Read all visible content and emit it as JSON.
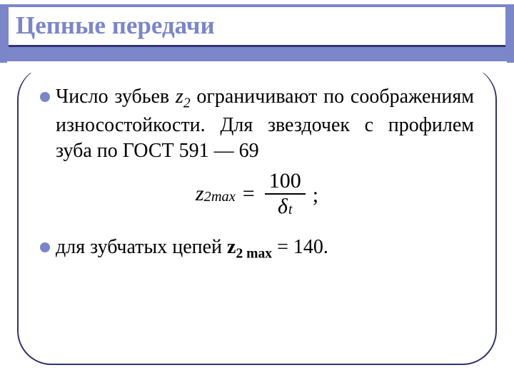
{
  "colors": {
    "accent": "#7b86c9",
    "title_underline": "#333370",
    "frame_border": "#333370",
    "background": "#ffffff",
    "text": "#000000"
  },
  "title": "Цепные передачи",
  "bullet1": {
    "lead_word": "Число",
    "mid1": " зубьев ",
    "var": "z",
    "var_sub": "2",
    "mid2": " ограничивают по соображениям износостойкости. Для звездочек с профилем зуба по ГОСТ 591 — 69"
  },
  "formula": {
    "lhs_var": "z",
    "lhs_sub_num": "2",
    "lhs_sub_word": "max",
    "eq": "=",
    "numerator": "100",
    "denom_var": "δ",
    "denom_sub": "t",
    "trail": ";"
  },
  "bullet2": {
    "lead_word": "для",
    "mid1": " зубчатых цепей ",
    "var": "z",
    "var_sub_num": "2",
    "var_sub_word": " max",
    "eq_val": " = 140."
  }
}
